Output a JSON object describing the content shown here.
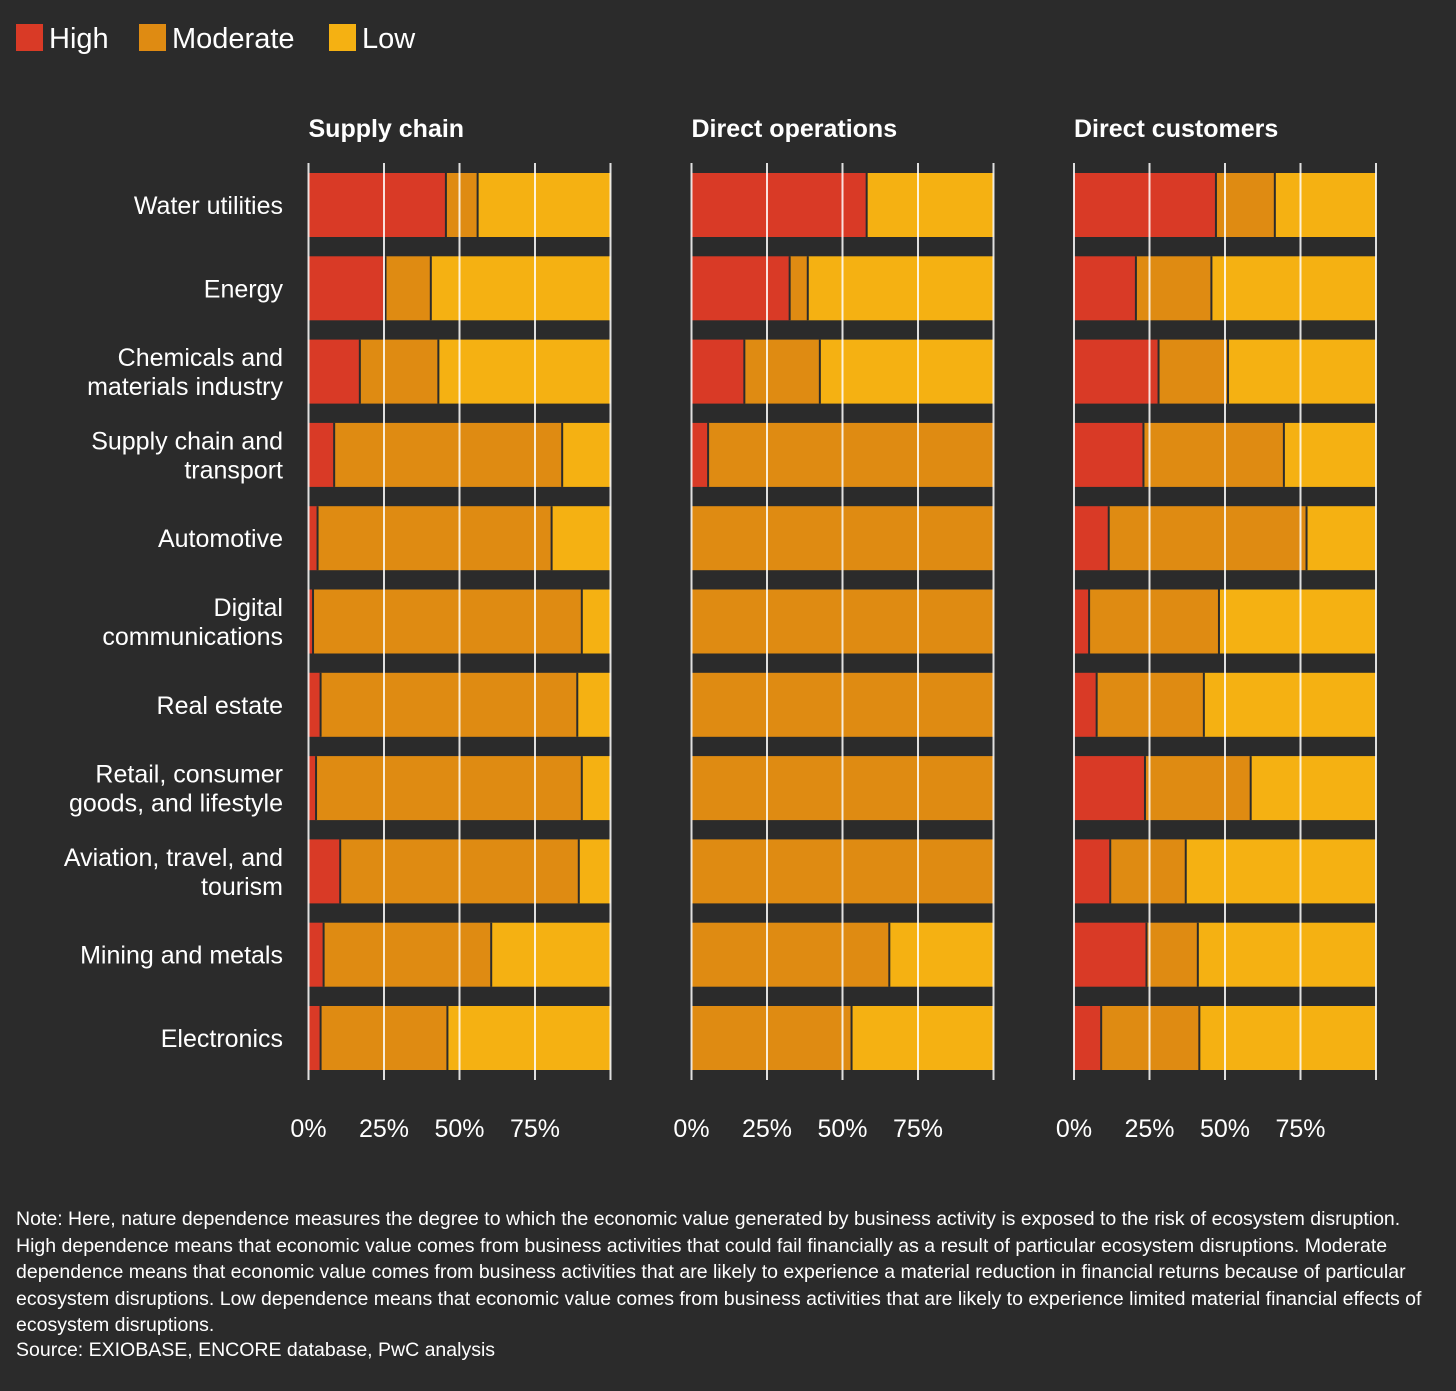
{
  "chart_data": {
    "type": "bar",
    "orientation": "horizontal",
    "stacked": true,
    "legend_position": "top-left",
    "legend": [
      {
        "name": "High",
        "color": "#d93a26"
      },
      {
        "name": "Moderate",
        "color": "#df8b12"
      },
      {
        "name": "Low",
        "color": "#f5b112"
      }
    ],
    "categories": [
      "Water utilities",
      "Energy",
      "Chemicals and materials industry",
      "Supply chain and transport",
      "Automotive",
      "Digital communications",
      "Real estate",
      "Retail, consumer goods, and lifestyle",
      "Aviation, travel, and tourism",
      "Mining and metals",
      "Electronics"
    ],
    "category_lines": [
      [
        "Water utilities"
      ],
      [
        "Energy"
      ],
      [
        "Chemicals and",
        "materials industry"
      ],
      [
        "Supply chain and",
        "transport"
      ],
      [
        "Automotive"
      ],
      [
        "Digital",
        "communications"
      ],
      [
        "Real estate"
      ],
      [
        "Retail, consumer",
        "goods, and lifestyle"
      ],
      [
        "Aviation, travel, and",
        "tourism"
      ],
      [
        "Mining and metals"
      ],
      [
        "Electronics"
      ]
    ],
    "x_ticks": [
      "0%",
      "25%",
      "50%",
      "75%"
    ],
    "xlim": [
      0,
      100
    ],
    "grid": true,
    "panels": [
      {
        "title": "Supply chain",
        "series": [
          {
            "name": "High",
            "values": [
              45.5,
              25.5,
              17,
              8.5,
              3,
              1.5,
              4,
              2.5,
              10.5,
              5,
              4
            ]
          },
          {
            "name": "Moderate",
            "values": [
              10.5,
              15,
              26,
              75.5,
              77.5,
              89,
              85,
              88,
              79,
              55.5,
              42
            ]
          },
          {
            "name": "Low",
            "values": [
              44,
              59.5,
              57,
              16,
              19.5,
              9.5,
              11,
              9.5,
              10.5,
              39.5,
              54
            ]
          }
        ]
      },
      {
        "title": "Direct operations",
        "series": [
          {
            "name": "High",
            "values": [
              58,
              32.5,
              17.5,
              5.5,
              0,
              0,
              0,
              0,
              0,
              0,
              0
            ]
          },
          {
            "name": "Moderate",
            "values": [
              0,
              6,
              25,
              94.5,
              100,
              100,
              100,
              100,
              100,
              65.5,
              53
            ]
          },
          {
            "name": "Low",
            "values": [
              42,
              61.5,
              57.5,
              0,
              0,
              0,
              0,
              0,
              0,
              34.5,
              47
            ]
          }
        ]
      },
      {
        "title": "Direct customers",
        "series": [
          {
            "name": "High",
            "values": [
              47,
              20.5,
              28,
              23,
              11.5,
              5,
              7.5,
              23.5,
              12,
              24,
              9
            ]
          },
          {
            "name": "Moderate",
            "values": [
              19.5,
              25,
              23,
              46.5,
              65.5,
              43,
              35.5,
              35,
              25,
              17,
              32.5
            ]
          },
          {
            "name": "Low",
            "values": [
              33.5,
              54.5,
              49,
              30.5,
              23,
              52,
              57,
              41.5,
              63,
              59,
              58.5
            ]
          }
        ]
      }
    ]
  },
  "note": "Note: Here, nature dependence measures the degree to which the economic value generated by business activity is exposed to the risk of ecosystem disruption. High dependence means that economic value comes from business activities that could fail financially as a result of particular ecosystem disruptions. Moderate dependence means that economic value comes from business activities that are likely to experience a material reduction in financial returns because of particular ecosystem disruptions. Low dependence means that economic value comes from business activities that are likely to experience limited material financial effects of ecosystem disruptions.",
  "source": "Source: EXIOBASE, ENCORE database, PwC analysis"
}
